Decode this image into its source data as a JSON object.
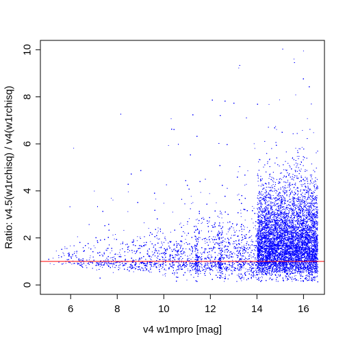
{
  "chart_data": {
    "type": "scatter",
    "title": "",
    "xlabel": "v4 w1mpro [mag]",
    "ylabel": "Ratio: v4.5(w1rchisq) / v4(w1rchisq)",
    "xlim": [
      4.7,
      16.9
    ],
    "ylim": [
      -0.4,
      10.4
    ],
    "x_ticks": [
      6,
      8,
      10,
      12,
      14,
      16
    ],
    "y_ticks": [
      0,
      2,
      4,
      6,
      8,
      10
    ],
    "grid": false,
    "legend": "none",
    "point_color": "#0000FF",
    "reference_line": {
      "y": 1,
      "color": "#FF0000"
    },
    "x_range_of_points": [
      5.0,
      16.6
    ],
    "notes_visible": "dense point cloud, median near 1, spread increases with magnitude, vertical streaks near 11.4, 12.4, 13.3, 15.2, 16.0"
  }
}
